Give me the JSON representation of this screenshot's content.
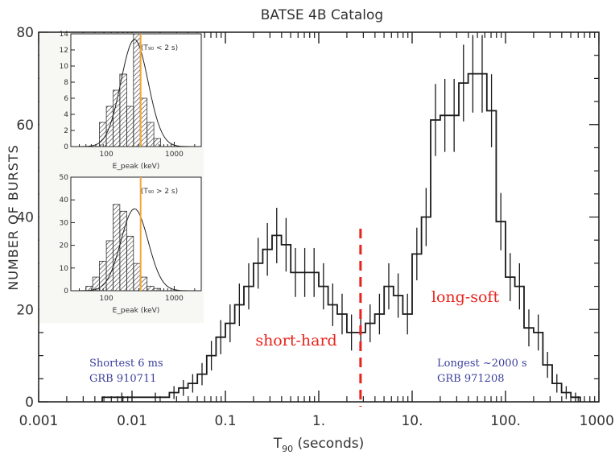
{
  "chart_data": {
    "type": "histogram",
    "title": "BATSE 4B Catalog",
    "xlabel": {
      "main": "T",
      "sub": "90",
      "rest": " (seconds)"
    },
    "ylabel": "NUMBER OF BURSTS",
    "xscale": "log",
    "xlim": [
      0.001,
      1000
    ],
    "ylim": [
      0,
      80
    ],
    "xticks": [
      {
        "v": 0.001,
        "label": "0.001"
      },
      {
        "v": 0.01,
        "label": "0.01"
      },
      {
        "v": 0.1,
        "label": "0.1"
      },
      {
        "v": 1,
        "label": "1."
      },
      {
        "v": 10,
        "label": "10."
      },
      {
        "v": 100,
        "label": "100."
      },
      {
        "v": 1000,
        "label": "1000."
      }
    ],
    "yticks": [
      0,
      20,
      40,
      60,
      80
    ],
    "grid": false,
    "bin_edges": [
      0.0048,
      0.0126,
      0.0251,
      0.0316,
      0.0398,
      0.0501,
      0.0631,
      0.0794,
      0.1,
      0.126,
      0.158,
      0.2,
      0.251,
      0.316,
      0.398,
      0.501,
      0.631,
      0.794,
      1.0,
      1.26,
      1.58,
      2.0,
      2.51,
      3.16,
      3.98,
      5.01,
      6.31,
      7.94,
      10.0,
      12.6,
      15.8,
      20.0,
      25.1,
      31.6,
      39.8,
      50.1,
      63.1,
      79.4,
      100,
      126,
      158,
      200,
      251,
      316,
      398,
      501,
      631
    ],
    "counts": [
      1,
      1,
      2,
      3,
      4,
      6,
      10,
      14,
      17,
      21,
      25,
      30,
      33,
      36,
      34,
      28,
      28,
      28,
      25,
      21,
      19,
      15,
      15,
      17,
      19,
      25,
      23,
      19,
      32,
      40,
      61,
      62,
      62,
      69,
      71,
      71,
      63,
      39,
      27,
      25,
      16,
      15,
      8,
      4,
      2,
      1
    ],
    "errors": [
      1,
      1,
      1.4,
      1.7,
      2,
      2.4,
      3.2,
      3.7,
      4.1,
      4.6,
      5,
      5.5,
      5.7,
      6,
      5.8,
      5.3,
      5.3,
      5.3,
      5,
      4.6,
      4.4,
      3.9,
      3.9,
      4.1,
      4.4,
      5,
      4.8,
      4.4,
      5.7,
      6.3,
      7.8,
      7.9,
      7.9,
      8.3,
      8.4,
      8.4,
      7.9,
      6.2,
      5.2,
      5,
      4,
      3.9,
      2.8,
      2,
      1.4,
      1
    ],
    "divider_x": 2.8,
    "annotations": {
      "short_hard": "short-hard",
      "long_soft": "long-soft",
      "shortest_line1": "Shortest 6 ms",
      "shortest_line2": "GRB 910711",
      "longest_line1": "Longest ~2000 s",
      "longest_line2": "GRB 971208"
    },
    "colors": {
      "line": "#1a1a1a",
      "divider": "#e8231c",
      "label_red": "#e8231c",
      "label_blue": "#3a3f9a",
      "inset_marker": "#f2a53a"
    },
    "insets": [
      {
        "label": "(T₉₀ < 2 s)",
        "ylim": [
          0,
          14
        ],
        "yticks": [
          0,
          2,
          4,
          6,
          8,
          10,
          12,
          14
        ],
        "xscale": "log",
        "xlim": [
          30,
          2500
        ],
        "xticks": [
          {
            "v": 100,
            "label": "100"
          },
          {
            "v": 1000,
            "label": "1000"
          }
        ],
        "xlabel": "E_peak (keV)",
        "bin_edges": [
          79,
          100,
          126,
          158,
          200,
          251,
          316,
          398,
          501,
          631
        ],
        "counts": [
          3,
          5,
          7,
          9,
          5,
          14,
          6,
          3,
          1
        ]
      },
      {
        "label": "(T₉₀ > 2 s)",
        "ylim": [
          0,
          50
        ],
        "yticks": [
          0,
          10,
          20,
          30,
          40,
          50
        ],
        "xscale": "log",
        "xlim": [
          30,
          2500
        ],
        "xticks": [
          {
            "v": 100,
            "label": "100"
          },
          {
            "v": 1000,
            "label": "1000"
          }
        ],
        "xlabel": "E_peak (keV)",
        "bin_edges": [
          50,
          63,
          79,
          100,
          126,
          158,
          200,
          251,
          316,
          398,
          501,
          631
        ],
        "counts": [
          2,
          6,
          13,
          22,
          38,
          35,
          24,
          12,
          6,
          2,
          1
        ]
      }
    ],
    "inset_marker_x": 320
  }
}
